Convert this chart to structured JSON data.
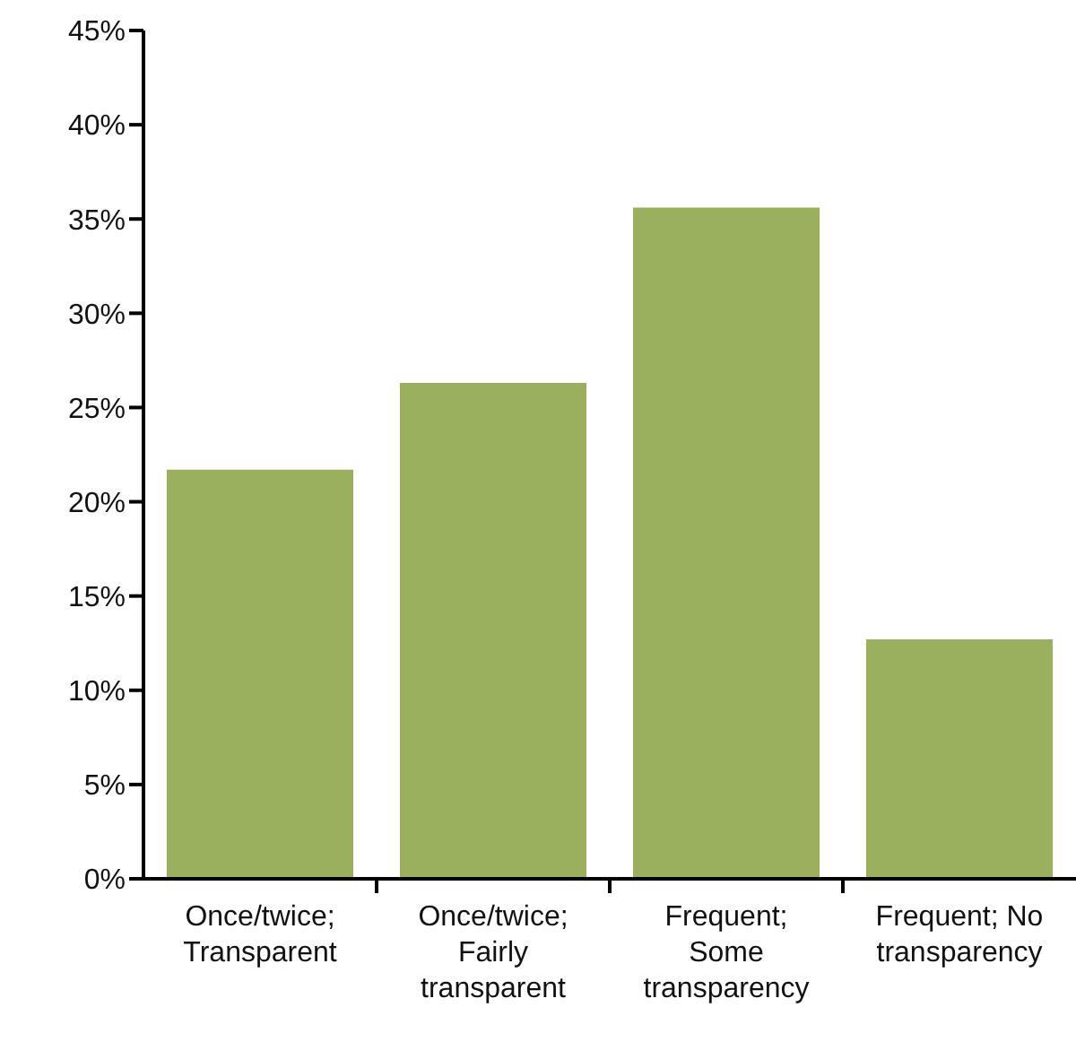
{
  "chart_data": {
    "type": "bar",
    "categories": [
      "Once/twice; Transparent",
      "Once/twice; Fairly transparent",
      "Frequent; Some transparency",
      "Frequent; No transparency"
    ],
    "values": [
      21.7,
      26.3,
      35.6,
      12.7
    ],
    "color": "#9bb05e",
    "ylim": [
      0,
      45
    ],
    "yticks": [
      {
        "value": 0,
        "label": "0%"
      },
      {
        "value": 5,
        "label": "5%"
      },
      {
        "value": 10,
        "label": "10%"
      },
      {
        "value": 15,
        "label": "15%"
      },
      {
        "value": 20,
        "label": "20%"
      },
      {
        "value": 25,
        "label": "25%"
      },
      {
        "value": 30,
        "label": "30%"
      },
      {
        "value": 35,
        "label": "35%"
      },
      {
        "value": 40,
        "label": "40%"
      },
      {
        "value": 45,
        "label": "45%"
      }
    ],
    "grid": false,
    "legend": false
  }
}
